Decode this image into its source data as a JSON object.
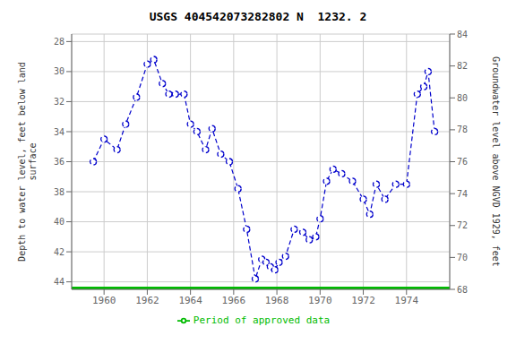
{
  "chart_data": {
    "type": "line",
    "title": "USGS 404542073282802 N  1232. 2",
    "ylabel": "Depth to water level, feet below land\nsurface",
    "y2label": "Groundwater level above NGVD 1929, feet",
    "x": [
      1959.5,
      1960.0,
      1960.6,
      1961.0,
      1961.5,
      1962.0,
      1962.3,
      1962.7,
      1963.0,
      1963.3,
      1963.7,
      1964.0,
      1964.3,
      1964.7,
      1965.0,
      1965.4,
      1965.8,
      1966.2,
      1966.6,
      1967.0,
      1967.3,
      1967.5,
      1967.7,
      1967.9,
      1968.1,
      1968.4,
      1968.8,
      1969.2,
      1969.5,
      1969.8,
      1970.0,
      1970.3,
      1970.6,
      1971.0,
      1971.5,
      1972.0,
      1972.3,
      1972.6,
      1973.0,
      1973.5,
      1974.0,
      1974.5,
      1974.8,
      1975.0,
      1975.3
    ],
    "series": [
      {
        "color": "#0000CC",
        "marker": "circle",
        "line_style": "dashed",
        "values": [
          36.0,
          34.5,
          35.2,
          33.5,
          31.7,
          29.5,
          29.2,
          30.8,
          31.5,
          31.5,
          31.5,
          33.5,
          34.0,
          35.2,
          33.8,
          35.5,
          36.0,
          37.8,
          40.5,
          43.8,
          42.5,
          42.7,
          43.0,
          43.2,
          42.7,
          42.3,
          40.5,
          40.7,
          41.2,
          41.0,
          39.8,
          37.3,
          36.5,
          36.8,
          37.3,
          38.5,
          39.5,
          37.5,
          38.5,
          37.5,
          37.5,
          31.5,
          31.0,
          30.0,
          34.0
        ]
      },
      {
        "name": "Period of approved data",
        "color": "#00BB00",
        "line_style": "solid",
        "x": [
          1958.5,
          1976.0
        ],
        "values": [
          44.5,
          44.5
        ]
      }
    ],
    "xlim": [
      1958.5,
      1976.0
    ],
    "xticks": [
      1960,
      1962,
      1964,
      1966,
      1968,
      1970,
      1972,
      1974
    ],
    "ylim": [
      44.5,
      27.5
    ],
    "yticks": [
      28,
      30,
      32,
      34,
      36,
      38,
      40,
      42,
      44
    ],
    "y2lim": [
      68,
      84
    ],
    "y2ticks": [
      84,
      82,
      80,
      78,
      76,
      74,
      72,
      70,
      68
    ],
    "grid": true,
    "legend": "bottom"
  }
}
